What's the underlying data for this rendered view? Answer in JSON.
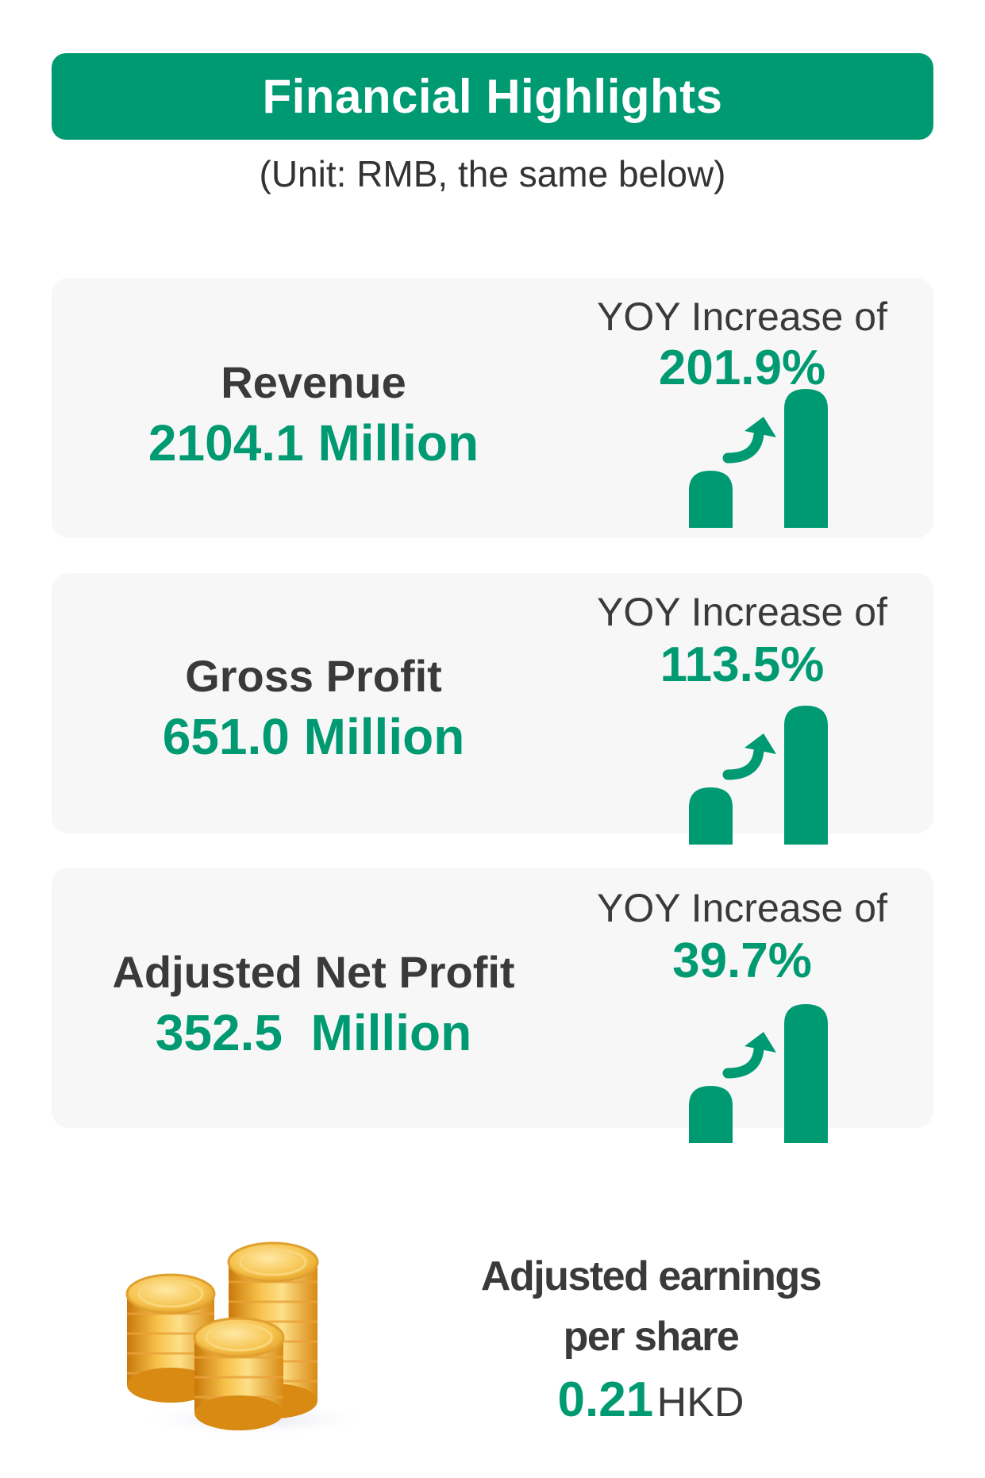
{
  "title": "Financial Highlights",
  "unit_note": "(Unit: RMB, the same below)",
  "accent_color": "#009a72",
  "metrics": [
    {
      "label": "Revenue",
      "value": "2104.1 Million",
      "yoy_label": "YOY Increase of",
      "yoy_value": "201.9%",
      "icon": "growth-bars-arrow-icon"
    },
    {
      "label": "Gross Profit",
      "value": "651.0 Million",
      "yoy_label": "YOY Increase of",
      "yoy_value": "113.5%",
      "icon": "growth-bars-arrow-icon"
    },
    {
      "label": "Adjusted Net Profit",
      "value": "352.5  Million",
      "yoy_label": "YOY Increase of",
      "yoy_value": "39.7%",
      "icon": "growth-bars-arrow-icon"
    }
  ],
  "eps": {
    "label_line1": "Adjusted earnings",
    "label_line2": "per share",
    "value": "0.21",
    "unit": "HKD",
    "icon": "gold-coins-icon"
  }
}
